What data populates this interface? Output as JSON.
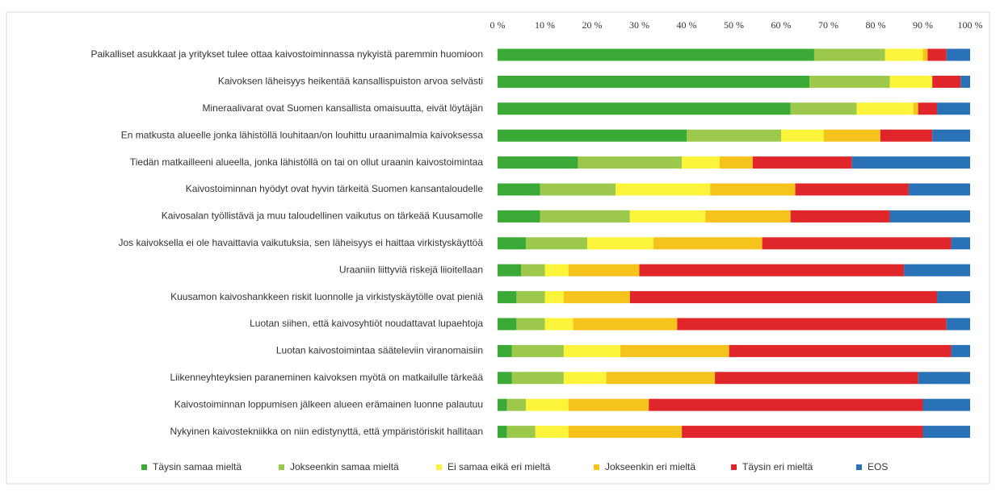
{
  "chart_data": {
    "type": "stacked-bar-horizontal",
    "categories": [
      "Paikalliset asukkaat ja yritykset tulee ottaa kaivostoiminnassa nykyistä paremmin huomioon",
      "Kaivoksen läheisyys heikentää kansallispuiston arvoa selvästi",
      "Mineraalivarat ovat Suomen kansallista omaisuutta, eivät löytäjän",
      "En matkusta alueelle jonka lähistöllä louhitaan/on louhittu uraanimalmia kaivoksessa",
      "Tiedän matkailleeni alueella, jonka lähistöllä on tai on ollut uraanin kaivostoimintaa",
      "Kaivostoiminnan hyödyt ovat hyvin tärkeitä Suomen kansantaloudelle",
      "Kaivosalan työllistävä ja muu taloudellinen vaikutus on tärkeää Kuusamolle",
      "Jos kaivoksella ei ole havaittavia vaikutuksia, sen läheisyys ei haittaa virkistyskäyttöä",
      "Uraaniin liittyviä riskejä liioitellaan",
      "Kuusamon kaivoshankkeen riskit luonnolle ja virkistyskäytölle ovat pieniä",
      "Luotan siihen, että kaivosyhtiöt noudattavat lupaehtoja",
      "Luotan kaivostoimintaa sääteleviin viranomaisiin",
      "Liikenneyhteyksien paraneminen kaivoksen myötä on matkailulle tärkeää",
      "Kaivostoiminnan loppumisen jälkeen alueen erämainen luonne palautuu",
      "Nykyinen kaivostekniikka on niin edistynyttä, että ympäristöriskit hallitaan"
    ],
    "series": [
      {
        "name": "Täysin samaa mieltä",
        "color": "#3aa935",
        "values": [
          67,
          66,
          62,
          40,
          17,
          9,
          9,
          6,
          5,
          4,
          4,
          3,
          3,
          2,
          2
        ]
      },
      {
        "name": "Jokseenkin samaa mieltä",
        "color": "#9cc84b",
        "values": [
          15,
          17,
          14,
          20,
          22,
          16,
          19,
          13,
          5,
          6,
          6,
          11,
          11,
          4,
          6
        ]
      },
      {
        "name": "Ei samaa eikä eri mieltä",
        "color": "#fbf43a",
        "values": [
          8,
          9,
          12,
          9,
          8,
          20,
          16,
          14,
          5,
          4,
          6,
          12,
          9,
          9,
          7
        ]
      },
      {
        "name": "Jokseenkin eri mieltä",
        "color": "#f6c21c",
        "values": [
          1,
          0,
          1,
          12,
          7,
          18,
          18,
          23,
          15,
          14,
          22,
          23,
          23,
          17,
          24
        ]
      },
      {
        "name": "Täysin eri mieltä",
        "color": "#e0262b",
        "values": [
          4,
          6,
          4,
          11,
          21,
          24,
          21,
          40,
          56,
          65,
          57,
          47,
          43,
          58,
          51
        ]
      },
      {
        "name": "EOS",
        "color": "#2a72b8",
        "values": [
          5,
          2,
          7,
          8,
          25,
          13,
          17,
          4,
          14,
          7,
          5,
          4,
          11,
          10,
          10
        ]
      }
    ],
    "xlim": [
      0,
      100
    ],
    "xticks": [
      {
        "value": 0,
        "label": "0 %"
      },
      {
        "value": 10,
        "label": "10 %"
      },
      {
        "value": 20,
        "label": "20 %"
      },
      {
        "value": 30,
        "label": "30 %"
      },
      {
        "value": 40,
        "label": "40 %"
      },
      {
        "value": 50,
        "label": "50 %"
      },
      {
        "value": 60,
        "label": "60 %"
      },
      {
        "value": 70,
        "label": "70 %"
      },
      {
        "value": 80,
        "label": "80 %"
      },
      {
        "value": 90,
        "label": "90 %"
      },
      {
        "value": 100,
        "label": "100 %"
      }
    ],
    "legend": "bottom"
  }
}
